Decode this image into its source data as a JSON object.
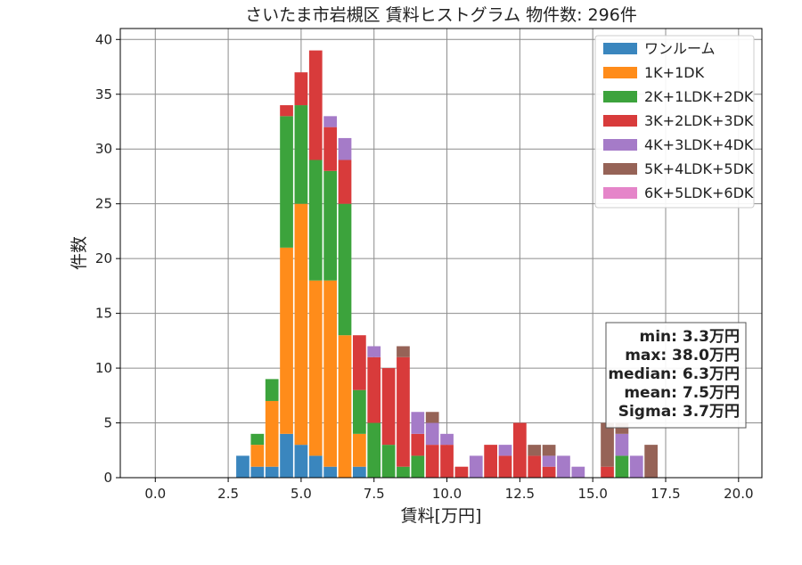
{
  "chart_data": {
    "type": "bar",
    "stacked": true,
    "title": "さいたま市岩槻区 賃料ヒストグラム 物件数: 296件",
    "xlabel": "賃料[万円]",
    "ylabel": "件数",
    "xlim": [
      -1.2,
      20.8
    ],
    "ylim": [
      0,
      41
    ],
    "xticks": [
      "0.0",
      "2.5",
      "5.0",
      "7.5",
      "10.0",
      "12.5",
      "15.0",
      "17.5",
      "20.0"
    ],
    "yticks": [
      "0",
      "5",
      "10",
      "15",
      "20",
      "25",
      "30",
      "35",
      "40"
    ],
    "grid": true,
    "legend_position": "top-right",
    "bin_width": 0.5,
    "x": [
      3.0,
      3.5,
      4.0,
      4.5,
      5.0,
      5.5,
      6.0,
      6.5,
      7.0,
      7.5,
      8.0,
      8.5,
      9.0,
      9.5,
      10.0,
      10.5,
      11.0,
      11.5,
      12.0,
      12.5,
      13.0,
      13.5,
      14.0,
      14.5,
      15.0,
      15.5,
      16.0,
      16.5,
      17.0
    ],
    "series": [
      {
        "name": "ワンルーム",
        "color": "#3a86be",
        "values": [
          2,
          1,
          1,
          4,
          3,
          2,
          1,
          0,
          1,
          0,
          0,
          0,
          0,
          0,
          0,
          0,
          0,
          0,
          0,
          0,
          0,
          0,
          0,
          0,
          0,
          0,
          0,
          0,
          0
        ]
      },
      {
        "name": "1K+1DK",
        "color": "#ff8c1a",
        "values": [
          0,
          2,
          6,
          17,
          22,
          16,
          17,
          13,
          3,
          0,
          0,
          0,
          0,
          0,
          0,
          0,
          0,
          0,
          0,
          0,
          0,
          0,
          0,
          0,
          0,
          0,
          0,
          0,
          0
        ]
      },
      {
        "name": "2K+1LDK+2DK",
        "color": "#3ca33c",
        "values": [
          0,
          1,
          2,
          12,
          9,
          11,
          10,
          12,
          4,
          5,
          3,
          1,
          2,
          0,
          0,
          0,
          0,
          0,
          0,
          0,
          0,
          0,
          0,
          0,
          0,
          0,
          2,
          0,
          0
        ]
      },
      {
        "name": "3K+2LDK+3DK",
        "color": "#d83b3b",
        "values": [
          0,
          0,
          0,
          1,
          3,
          10,
          4,
          4,
          5,
          6,
          7,
          10,
          2,
          3,
          3,
          1,
          0,
          3,
          2,
          5,
          2,
          1,
          0,
          0,
          0,
          1,
          0,
          0,
          0
        ]
      },
      {
        "name": "4K+3LDK+4DK",
        "color": "#a57bc8",
        "values": [
          0,
          0,
          0,
          0,
          0,
          0,
          1,
          2,
          0,
          1,
          0,
          0,
          2,
          2,
          1,
          0,
          2,
          0,
          1,
          0,
          0,
          1,
          2,
          1,
          0,
          0,
          2,
          2,
          0
        ]
      },
      {
        "name": "5K+4LDK+5DK",
        "color": "#966357",
        "values": [
          0,
          0,
          0,
          0,
          0,
          0,
          0,
          0,
          0,
          0,
          0,
          1,
          0,
          1,
          0,
          0,
          0,
          0,
          0,
          0,
          1,
          1,
          0,
          0,
          0,
          4,
          1,
          0,
          3
        ]
      },
      {
        "name": "6K+5LDK+6DK",
        "color": "#e585c9",
        "values": [
          0,
          0,
          0,
          0,
          0,
          0,
          0,
          0,
          0,
          0,
          0,
          0,
          0,
          0,
          0,
          0,
          0,
          0,
          0,
          0,
          0,
          0,
          0,
          0,
          0,
          0,
          0,
          0,
          0
        ]
      }
    ],
    "stats_box": [
      "min: 3.3万円",
      "max: 38.0万円",
      "median: 6.3万円",
      "mean: 7.5万円",
      "Sigma: 3.7万円"
    ]
  }
}
